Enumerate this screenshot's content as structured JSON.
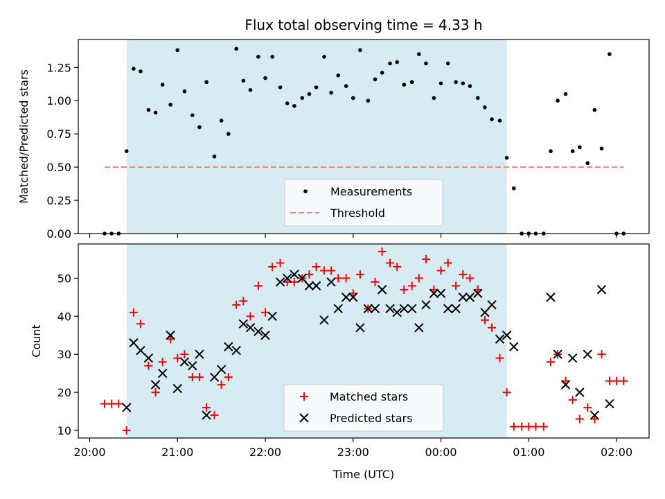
{
  "chart_data": [
    {
      "type": "scatter",
      "title": "Flux total observing time = 4.33 h",
      "xlabel": "",
      "ylabel": "Matched/Predicted stars",
      "x_units": "hours since 20:00 UTC",
      "xlim": [
        -0.13,
        6.37
      ],
      "ylim": [
        0.0,
        1.46
      ],
      "yticks": [
        0.0,
        0.25,
        0.5,
        0.75,
        1.0,
        1.25
      ],
      "ytick_labels": [
        "0.00",
        "0.25",
        "0.50",
        "0.75",
        "1.00",
        "1.25"
      ],
      "xticks": [
        0,
        1,
        2,
        3,
        4,
        5,
        6
      ],
      "shaded_interval": [
        0.42,
        4.75
      ],
      "threshold": {
        "value": 0.5,
        "x_start": 0.17,
        "x_end": 6.08
      },
      "legend_position": "lower center",
      "legend": [
        "Measurements",
        "Threshold"
      ],
      "colors": {
        "measurements": "#000000",
        "threshold": "#f08080",
        "shading": "#add8e6"
      },
      "series": [
        {
          "name": "Measurements",
          "x": [
            0.17,
            0.25,
            0.33,
            0.42,
            0.5,
            0.58,
            0.67,
            0.75,
            0.83,
            0.92,
            1.0,
            1.08,
            1.17,
            1.25,
            1.33,
            1.42,
            1.5,
            1.58,
            1.67,
            1.75,
            1.83,
            1.92,
            2.0,
            2.08,
            2.17,
            2.25,
            2.33,
            2.42,
            2.5,
            2.58,
            2.67,
            2.75,
            2.83,
            2.92,
            3.0,
            3.08,
            3.17,
            3.25,
            3.33,
            3.42,
            3.5,
            3.58,
            3.67,
            3.75,
            3.83,
            3.92,
            4.0,
            4.08,
            4.17,
            4.25,
            4.33,
            4.42,
            4.5,
            4.58,
            4.67,
            4.75,
            4.83,
            4.92,
            5.0,
            5.08,
            5.17,
            5.25,
            5.33,
            5.42,
            5.5,
            5.58,
            5.67,
            5.75,
            5.83,
            5.92,
            6.0,
            6.08
          ],
          "y": [
            0.0,
            0.0,
            0.0,
            0.62,
            1.24,
            1.22,
            0.93,
            0.91,
            1.12,
            0.97,
            1.38,
            1.07,
            0.89,
            0.8,
            1.14,
            0.58,
            0.85,
            0.75,
            1.39,
            1.15,
            1.08,
            1.33,
            1.17,
            1.33,
            1.1,
            0.98,
            0.96,
            1.02,
            1.05,
            1.1,
            1.33,
            1.06,
            1.19,
            1.11,
            1.02,
            1.38,
            1.0,
            1.16,
            1.21,
            1.28,
            1.29,
            1.12,
            1.14,
            1.35,
            1.28,
            1.02,
            1.13,
            1.28,
            1.14,
            1.13,
            1.11,
            1.02,
            0.95,
            0.86,
            0.85,
            0.57,
            0.34,
            0.0,
            0.0,
            0.0,
            0.0,
            0.62,
            1.0,
            1.05,
            0.62,
            0.65,
            0.53,
            0.93,
            0.64,
            1.35,
            0.0,
            0.0
          ]
        }
      ]
    },
    {
      "type": "scatter",
      "title": "",
      "xlabel": "Time (UTC)",
      "ylabel": "Count",
      "x_units": "hours since 20:00 UTC",
      "xlim": [
        -0.13,
        6.37
      ],
      "ylim": [
        8,
        59
      ],
      "yticks": [
        10,
        20,
        30,
        40,
        50
      ],
      "ytick_labels": [
        "10",
        "20",
        "30",
        "40",
        "50"
      ],
      "xticks": [
        0,
        1,
        2,
        3,
        4,
        5,
        6
      ],
      "xtick_labels": [
        "20:00",
        "21:00",
        "22:00",
        "23:00",
        "00:00",
        "01:00",
        "02:00"
      ],
      "shaded_interval": [
        0.42,
        4.75
      ],
      "legend_position": "lower center",
      "legend": [
        "Matched stars",
        "Predicted stars"
      ],
      "colors": {
        "matched": "#ff0000",
        "predicted": "#000000",
        "shading": "#add8e6"
      },
      "series": [
        {
          "name": "Matched stars",
          "x": [
            0.17,
            0.25,
            0.33,
            0.42,
            0.5,
            0.58,
            0.67,
            0.75,
            0.83,
            0.92,
            1.0,
            1.08,
            1.17,
            1.25,
            1.33,
            1.42,
            1.5,
            1.58,
            1.67,
            1.75,
            1.83,
            1.92,
            2.0,
            2.08,
            2.17,
            2.25,
            2.33,
            2.42,
            2.5,
            2.58,
            2.67,
            2.75,
            2.83,
            2.92,
            3.0,
            3.08,
            3.17,
            3.25,
            3.33,
            3.42,
            3.5,
            3.58,
            3.67,
            3.75,
            3.83,
            3.92,
            4.0,
            4.08,
            4.17,
            4.25,
            4.33,
            4.42,
            4.5,
            4.58,
            4.67,
            4.75,
            4.83,
            4.92,
            5.0,
            5.08,
            5.17,
            5.25,
            5.33,
            5.42,
            5.5,
            5.58,
            5.67,
            5.75,
            5.83,
            5.92,
            6.0,
            6.08
          ],
          "y": [
            17,
            17,
            17,
            10,
            41,
            38,
            27,
            20,
            28,
            34,
            29,
            30,
            24,
            24,
            16,
            14,
            22,
            24,
            43,
            44,
            40,
            48,
            41,
            53,
            54,
            49,
            49,
            50,
            51,
            53,
            52,
            52,
            50,
            50,
            46,
            51,
            42,
            49,
            57,
            54,
            53,
            47,
            48,
            50,
            55,
            47,
            52,
            54,
            48,
            51,
            50,
            47,
            39,
            37,
            29,
            20,
            11,
            11,
            11,
            11,
            11,
            28,
            30,
            23,
            18,
            13,
            16,
            13,
            30,
            23,
            23,
            23
          ]
        },
        {
          "name": "Predicted stars",
          "x": [
            0.42,
            0.5,
            0.58,
            0.67,
            0.75,
            0.83,
            0.92,
            1.0,
            1.08,
            1.17,
            1.25,
            1.33,
            1.42,
            1.5,
            1.58,
            1.67,
            1.75,
            1.83,
            1.92,
            2.0,
            2.08,
            2.17,
            2.25,
            2.33,
            2.42,
            2.5,
            2.58,
            2.67,
            2.75,
            2.83,
            2.92,
            3.0,
            3.08,
            3.17,
            3.25,
            3.33,
            3.42,
            3.5,
            3.58,
            3.67,
            3.75,
            3.83,
            3.92,
            4.0,
            4.08,
            4.17,
            4.25,
            4.33,
            4.42,
            4.5,
            4.58,
            4.67,
            4.75,
            4.83,
            5.25,
            5.33,
            5.42,
            5.5,
            5.58,
            5.67,
            5.75,
            5.83,
            5.92
          ],
          "y": [
            16,
            33,
            31,
            29,
            22,
            25,
            35,
            21,
            28,
            27,
            30,
            14,
            24,
            26,
            32,
            31,
            38,
            37,
            36,
            35,
            40,
            49,
            50,
            51,
            50,
            48,
            48,
            39,
            49,
            42,
            45,
            45,
            37,
            42,
            42,
            47,
            42,
            41,
            42,
            42,
            37,
            43,
            46,
            46,
            42,
            42,
            45,
            45,
            46,
            41,
            43,
            34,
            35,
            32,
            45,
            30,
            22,
            29,
            20,
            30,
            14,
            47,
            17
          ]
        }
      ]
    }
  ]
}
